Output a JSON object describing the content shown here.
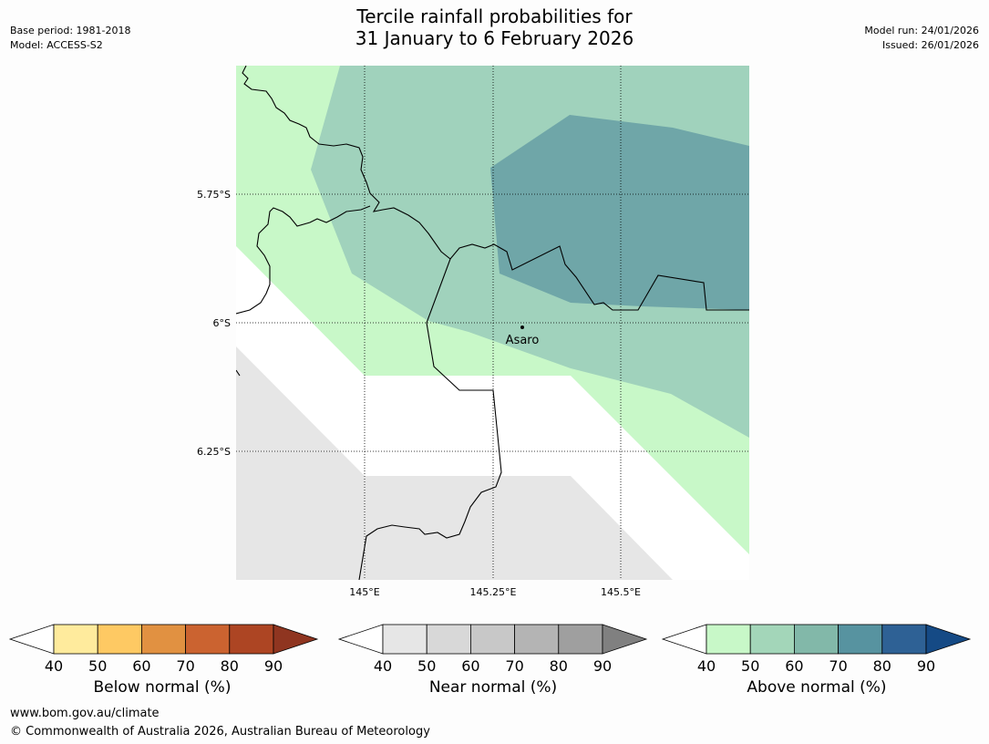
{
  "title": {
    "line1": "Tercile rainfall probabilities for",
    "line2": "31 January to 6 February 2026"
  },
  "meta": {
    "base_period": "Base period: 1981-2018",
    "model": "Model: ACCESS-S2",
    "model_run": "Model run: 24/01/2026",
    "issued": "Issued: 26/01/2026"
  },
  "map": {
    "lat_labels": [
      "5.75°S",
      "6°S",
      "6.25°S"
    ],
    "lon_labels": [
      "145°E",
      "145.25°E",
      "145.5°E"
    ],
    "place": "Asaro"
  },
  "colorbars": [
    {
      "label": "Below normal (%)",
      "ticks": [
        "40",
        "50",
        "60",
        "70",
        "80",
        "90"
      ],
      "colors": [
        "#ffffff",
        "#ffeb9d",
        "#fec963",
        "#e19141",
        "#cb6330",
        "#ad4523",
        "#8f3520"
      ]
    },
    {
      "label": "Near normal (%)",
      "ticks": [
        "40",
        "50",
        "60",
        "70",
        "80",
        "90"
      ],
      "colors": [
        "#ffffff",
        "#e6e6e6",
        "#d8d8d8",
        "#c8c8c8",
        "#b4b4b4",
        "#9f9f9f",
        "#808080"
      ]
    },
    {
      "label": "Above normal (%)",
      "ticks": [
        "40",
        "50",
        "60",
        "70",
        "80",
        "90"
      ],
      "colors": [
        "#ffffff",
        "#c8f8c8",
        "#a3d6b9",
        "#82b8a9",
        "#5793a0",
        "#2e6195",
        "#154a85"
      ]
    }
  ],
  "footer": {
    "url": "www.bom.gov.au/climate",
    "copyright": "© Commonwealth of Australia 2026, Australian Bureau of Meteorology"
  }
}
